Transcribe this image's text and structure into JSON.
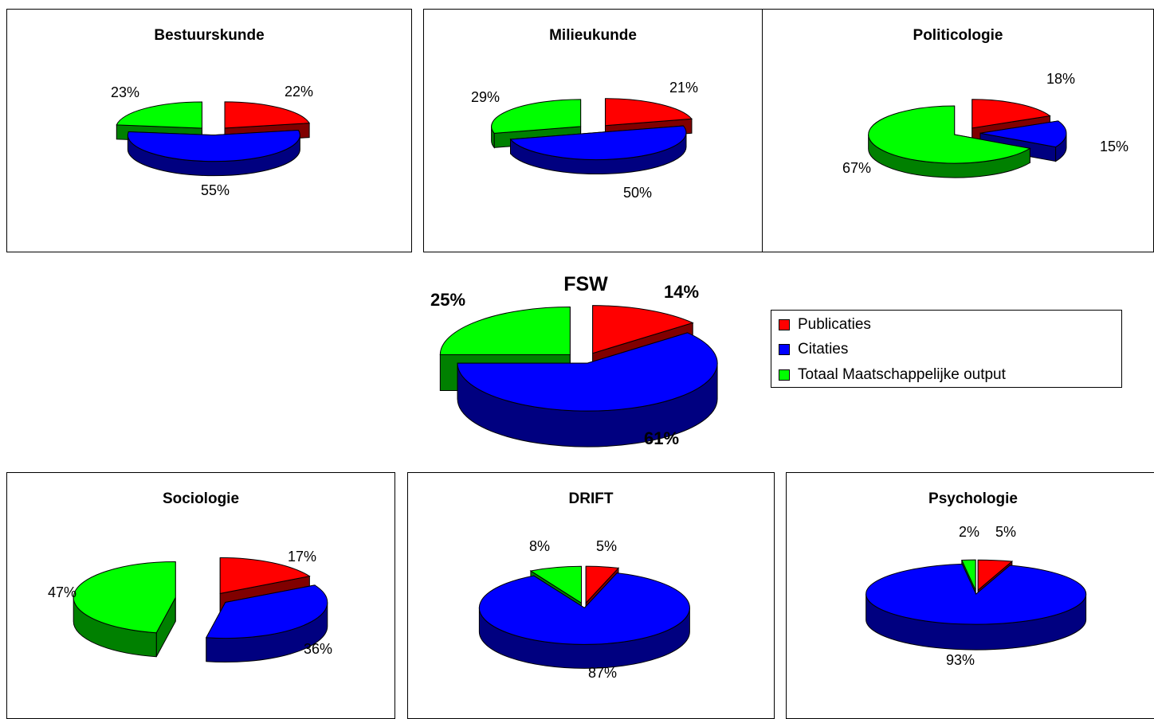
{
  "colors": {
    "Publicaties": {
      "top": "#ff0000",
      "side": "#800000"
    },
    "Citaties": {
      "top": "#0000ff",
      "side": "#000080"
    },
    "Totaal Maatschappelijke output": {
      "top": "#00ff00",
      "side": "#008000"
    }
  },
  "legend": {
    "items": [
      "Publicaties",
      "Citaties",
      "Totaal Maatschappelijke output"
    ]
  },
  "chart_data": [
    {
      "type": "pie",
      "title": "Bestuurskunde",
      "categories": [
        "Publicaties",
        "Citaties",
        "Totaal Maatschappelijke output"
      ],
      "values": [
        22,
        55,
        23
      ],
      "labels": [
        "22%",
        "55%",
        "23%"
      ]
    },
    {
      "type": "pie",
      "title": "Milieukunde",
      "categories": [
        "Publicaties",
        "Citaties",
        "Totaal Maatschappelijke output"
      ],
      "values": [
        21,
        50,
        29
      ],
      "labels": [
        "21%",
        "50%",
        "29%"
      ]
    },
    {
      "type": "pie",
      "title": "Politicologie",
      "categories": [
        "Publicaties",
        "Citaties",
        "Totaal Maatschappelijke output"
      ],
      "values": [
        18,
        15,
        67
      ],
      "labels": [
        "18%",
        "15%",
        "67%"
      ]
    },
    {
      "type": "pie",
      "title": "FSW",
      "categories": [
        "Publicaties",
        "Citaties",
        "Totaal Maatschappelijke output"
      ],
      "values": [
        14,
        61,
        25
      ],
      "labels": [
        "14%",
        "61%",
        "25%"
      ]
    },
    {
      "type": "pie",
      "title": "Sociologie",
      "categories": [
        "Publicaties",
        "Citaties",
        "Totaal Maatschappelijke output"
      ],
      "values": [
        17,
        36,
        47
      ],
      "labels": [
        "17%",
        "36%",
        "47%"
      ]
    },
    {
      "type": "pie",
      "title": "DRIFT",
      "categories": [
        "Publicaties",
        "Citaties",
        "Totaal Maatschappelijke output"
      ],
      "values": [
        5,
        87,
        8
      ],
      "labels": [
        "5%",
        "87%",
        "8%"
      ]
    },
    {
      "type": "pie",
      "title": "Psychologie",
      "categories": [
        "Publicaties",
        "Citaties",
        "Totaal Maatschappelijke output"
      ],
      "values": [
        5,
        93,
        2
      ],
      "labels": [
        "5%",
        "93%",
        "2%"
      ]
    }
  ]
}
